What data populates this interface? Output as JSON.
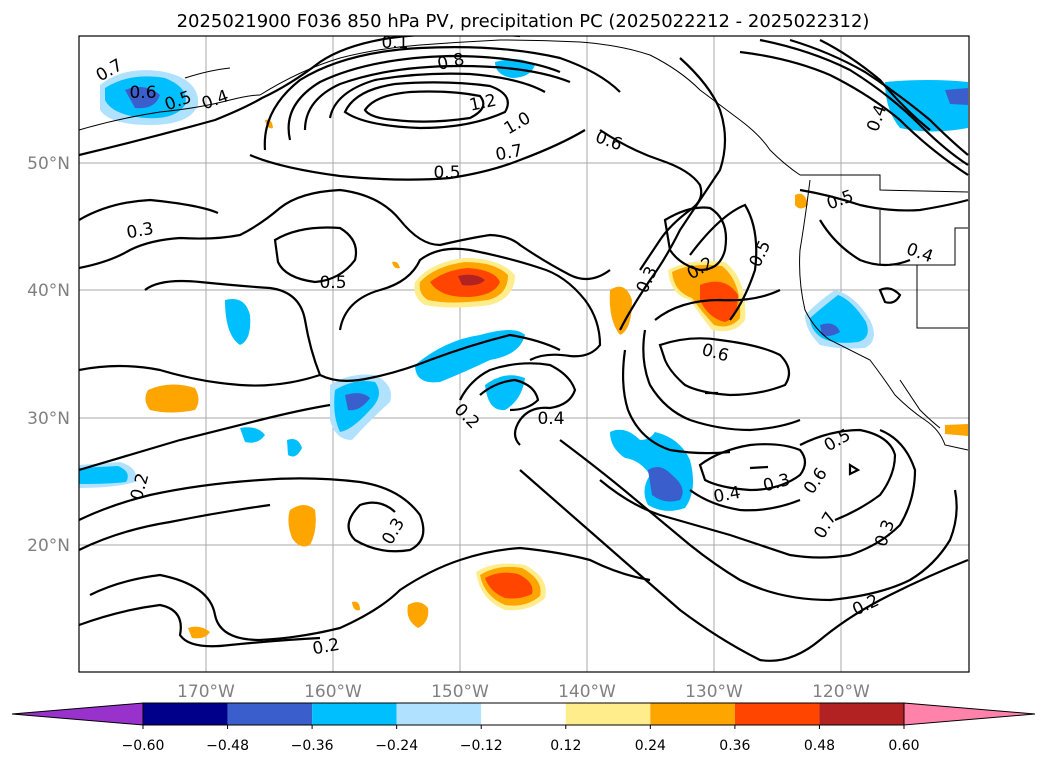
{
  "title": "2025021900 F036 850 hPa PV, precipitation PC (2025022212 - 2025022312)",
  "lon_ticks": [
    "170°W",
    "160°W",
    "150°W",
    "140°W",
    "130°W",
    "120°W"
  ],
  "lat_ticks": [
    "50°N",
    "40°N",
    "30°N",
    "20°N"
  ],
  "colorbar": {
    "ticks": [
      "−0.60",
      "−0.48",
      "−0.36",
      "−0.24",
      "−0.12",
      "0.12",
      "0.24",
      "0.36",
      "0.48",
      "0.60"
    ],
    "colors": [
      "#9932cc",
      "#00008b",
      "#3a5fcd",
      "#00bfff",
      "#b0e2ff",
      "#ffffff",
      "#ffec8b",
      "#ffa500",
      "#ff4500",
      "#b22222",
      "#ff82ab"
    ]
  },
  "contour_labels": [
    "0.8",
    "1.2",
    "1.0",
    "0.7",
    "0.6",
    "0.5",
    "0.4",
    "0.6",
    "0.5",
    "0.3",
    "0.5",
    "0.3",
    "0.2",
    "0.5",
    "0.5",
    "0.4",
    "0.6",
    "0.2",
    "0.4",
    "0.4",
    "0.3",
    "0.5",
    "0.6",
    "0.7",
    "0.3",
    "0.2",
    "0.2",
    "0.2",
    "0.3",
    "0.1",
    "0.4",
    "0.7"
  ],
  "colors": {
    "contour": "#000000",
    "grid": "#a9a9a9",
    "tick_label": "#808080"
  }
}
